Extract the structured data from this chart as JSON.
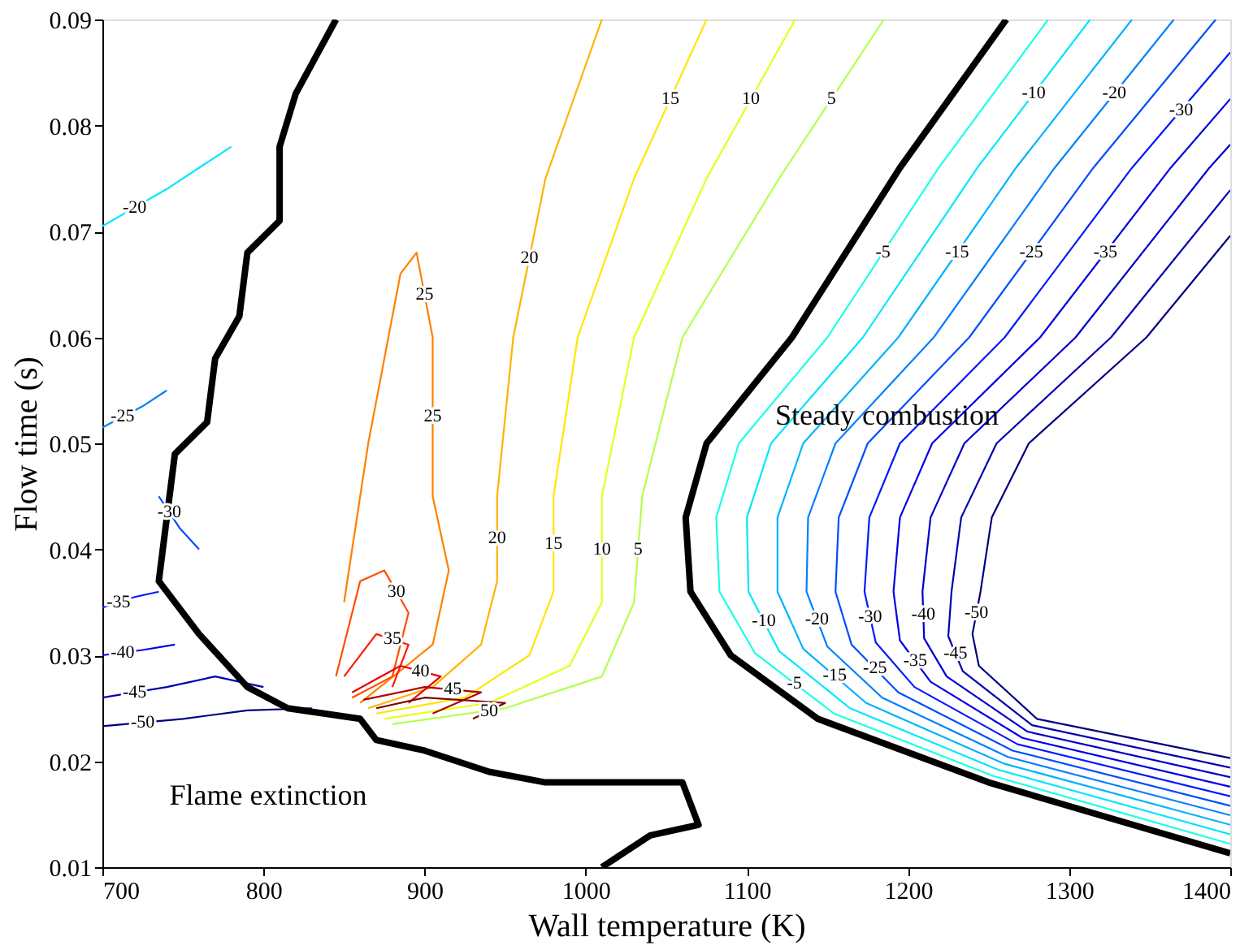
{
  "chart_data": {
    "type": "line",
    "xlabel": "Wall temperature (K)",
    "ylabel": "Flow time (s)",
    "xlim": [
      700,
      1400
    ],
    "ylim": [
      0.01,
      0.09
    ],
    "xticks": [
      700,
      800,
      900,
      {
        "value": 1000,
        "label": "1000"
      },
      {
        "value": 1100,
        "label": "1100"
      },
      {
        "value": 1200,
        "label": "1200"
      },
      {
        "value": 1300,
        "label": "1300"
      },
      {
        "value": 1400,
        "label": "1400"
      }
    ],
    "yticks": [
      0.01,
      0.02,
      0.03,
      0.04,
      0.05,
      0.06,
      0.07,
      0.08,
      0.09
    ],
    "grid": false,
    "series": [
      {
        "color": "#000000",
        "x": [
          1261,
          1195,
          1128,
          1075,
          1062,
          1065,
          1090,
          1144,
          1250,
          1400
        ],
        "values": [
          0.09,
          0.076,
          0.06,
          0.05,
          0.043,
          0.036,
          0.03,
          0.024,
          0.018,
          0.0113
        ]
      },
      {
        "color": "#1affe6",
        "x": [
          1287,
          1219,
          1150,
          1095,
          1081,
          1083,
          1105,
          1154,
          1253,
          1400
        ],
        "values": [
          0.09,
          0.076,
          0.06,
          0.05,
          0.043,
          0.036,
          0.0302,
          0.0245,
          0.0186,
          0.0122
        ]
      },
      {
        "color": "#00e6ff",
        "x": [
          1313,
          1243,
          1172,
          1115,
          1100,
          1101,
          1120,
          1164,
          1256,
          1400
        ],
        "values": [
          0.09,
          0.076,
          0.06,
          0.05,
          0.043,
          0.036,
          0.0304,
          0.025,
          0.0192,
          0.0131
        ]
      },
      {
        "color": "#00b3ff",
        "x": [
          1339,
          1267,
          1194,
          1135,
          1119,
          1119,
          1135,
          1174,
          1259,
          1400
        ],
        "values": [
          0.09,
          0.076,
          0.06,
          0.05,
          0.043,
          0.036,
          0.0306,
          0.0255,
          0.0198,
          0.014
        ]
      },
      {
        "color": "#0080ff",
        "x": [
          1365,
          1291,
          1216,
          1155,
          1138,
          1137,
          1150,
          1184,
          1262,
          1400
        ],
        "values": [
          0.09,
          0.076,
          0.06,
          0.05,
          0.043,
          0.036,
          0.0308,
          0.026,
          0.0204,
          0.0149
        ]
      },
      {
        "color": "#004dff",
        "x": [
          1391,
          1315,
          1238,
          1175,
          1157,
          1155,
          1165,
          1194,
          1265,
          1400
        ],
        "values": [
          0.09,
          0.076,
          0.06,
          0.05,
          0.043,
          0.036,
          0.031,
          0.0265,
          0.021,
          0.0158
        ]
      },
      {
        "color": "#001aff",
        "x": [
          1400,
          1339,
          1260,
          1195,
          1176,
          1173,
          1180,
          1204,
          1268,
          1400
        ],
        "values": [
          0.0869,
          0.076,
          0.06,
          0.05,
          0.043,
          0.036,
          0.0312,
          0.027,
          0.0216,
          0.0167
        ]
      },
      {
        "color": "#0000e6",
        "x": [
          1400,
          1363,
          1282,
          1215,
          1195,
          1191,
          1195,
          1214,
          1271,
          1400
        ],
        "values": [
          0.0825,
          0.076,
          0.06,
          0.05,
          0.043,
          0.036,
          0.0314,
          0.0275,
          0.0222,
          0.0176
        ]
      },
      {
        "color": "#0000cc",
        "x": [
          1400,
          1387,
          1304,
          1235,
          1214,
          1209,
          1210,
          1224,
          1274,
          1400
        ],
        "values": [
          0.0782,
          0.076,
          0.06,
          0.05,
          0.043,
          0.036,
          0.0316,
          0.028,
          0.0228,
          0.0185
        ]
      },
      {
        "color": "#0000b3",
        "x": [
          1400,
          1326,
          1255,
          1233,
          1227,
          1225,
          1234,
          1277,
          1400
        ],
        "values": [
          0.0739,
          0.06,
          0.05,
          0.043,
          0.036,
          0.0318,
          0.0285,
          0.0234,
          0.0194
        ]
      },
      {
        "color": "#000080",
        "x": [
          1400,
          1348,
          1275,
          1252,
          1245,
          1240,
          1244,
          1280,
          1400
        ],
        "values": [
          0.0696,
          0.06,
          0.05,
          0.043,
          0.036,
          0.032,
          0.029,
          0.024,
          0.0203
        ]
      },
      {
        "color": "#b3ff4d",
        "x": [
          1185,
          1120,
          1060,
          1035,
          1030,
          1010,
          950,
          880
        ],
        "values": [
          0.09,
          0.075,
          0.06,
          0.045,
          0.035,
          0.028,
          0.025,
          0.0235
        ]
      },
      {
        "color": "#e6ff1a",
        "x": [
          1130,
          1075,
          1030,
          1010,
          1010,
          990,
          940,
          875
        ],
        "values": [
          0.09,
          0.075,
          0.06,
          0.045,
          0.035,
          0.029,
          0.0255,
          0.024
        ]
      },
      {
        "color": "#ffe600",
        "x": [
          1075,
          1030,
          995,
          980,
          980,
          965,
          925,
          870
        ],
        "values": [
          0.09,
          0.075,
          0.06,
          0.045,
          0.036,
          0.03,
          0.026,
          0.0245
        ]
      },
      {
        "color": "#ffb300",
        "x": [
          1010,
          975,
          955,
          945,
          945,
          935,
          905,
          865
        ],
        "values": [
          0.09,
          0.075,
          0.06,
          0.045,
          0.037,
          0.031,
          0.027,
          0.025
        ]
      },
      {
        "color": "#ff8000",
        "x": [
          850,
          865,
          885,
          895,
          905,
          905,
          915,
          905,
          860
        ],
        "values": [
          0.035,
          0.05,
          0.066,
          0.068,
          0.06,
          0.045,
          0.038,
          0.031,
          0.0255
        ]
      },
      {
        "color": "#ff4d00",
        "x": [
          845,
          860,
          875,
          890,
          880,
          855
        ],
        "values": [
          0.028,
          0.037,
          0.038,
          0.034,
          0.028,
          0.026
        ]
      },
      {
        "color": "#ff1a00",
        "x": [
          850,
          870,
          890,
          880
        ],
        "values": [
          0.028,
          0.032,
          0.031,
          0.027
        ]
      },
      {
        "color": "#e60000",
        "x": [
          855,
          885,
          910,
          890
        ],
        "values": [
          0.0265,
          0.029,
          0.028,
          0.0255
        ]
      },
      {
        "color": "#b30000",
        "x": [
          862,
          900,
          935,
          905
        ],
        "values": [
          0.0258,
          0.027,
          0.0265,
          0.0245
        ]
      },
      {
        "color": "#800000",
        "x": [
          870,
          900,
          950,
          930
        ],
        "values": [
          0.025,
          0.026,
          0.0255,
          0.024
        ]
      },
      {
        "color": "#00e6ff",
        "x": [
          700,
          740,
          780
        ],
        "values": [
          0.0705,
          0.074,
          0.078
        ]
      },
      {
        "color": "#004dff",
        "x": [
          735,
          748,
          760
        ],
        "values": [
          0.045,
          0.042,
          0.04
        ]
      },
      {
        "color": "#0080ff",
        "x": [
          700,
          725,
          740
        ],
        "values": [
          0.0515,
          0.0535,
          0.055
        ]
      },
      {
        "color": "#001aff",
        "x": [
          700,
          720,
          735
        ],
        "values": [
          0.0345,
          0.0355,
          0.036
        ]
      },
      {
        "color": "#0000e6",
        "x": [
          700,
          725,
          745
        ],
        "values": [
          0.03,
          0.0305,
          0.031
        ]
      },
      {
        "color": "#0000b3",
        "x": [
          700,
          740,
          770,
          800
        ],
        "values": [
          0.026,
          0.027,
          0.028,
          0.027
        ]
      },
      {
        "color": "#000080",
        "x": [
          700,
          750,
          790,
          830
        ],
        "values": [
          0.0233,
          0.024,
          0.0248,
          0.025
        ]
      },
      {
        "color": "#000000",
        "x": [
          845,
          820,
          810,
          810,
          790,
          785,
          770,
          765,
          745,
          740,
          735,
          760,
          790,
          815,
          860,
          870,
          900,
          940,
          975,
          1060,
          1070,
          1040,
          1010
        ],
        "values": [
          0.09,
          0.083,
          0.078,
          0.071,
          0.068,
          0.062,
          0.058,
          0.052,
          0.049,
          0.043,
          0.037,
          0.032,
          0.027,
          0.025,
          0.024,
          0.022,
          0.021,
          0.019,
          0.018,
          0.018,
          0.014,
          0.013,
          0.01
        ]
      }
    ],
    "annotations": [
      {
        "text": "5",
        "x": 1152.5,
        "y": 0.0825
      },
      {
        "text": "10",
        "x": 1102.5,
        "y": 0.0825
      },
      {
        "text": "15",
        "x": 1052.5,
        "y": 0.0825
      },
      {
        "text": "20",
        "x": 965,
        "y": 0.0675
      },
      {
        "text": "25",
        "x": 900,
        "y": 0.064
      },
      {
        "text": "5",
        "x": 1032.5,
        "y": 0.04
      },
      {
        "text": "10",
        "x": 1010,
        "y": 0.04
      },
      {
        "text": "15",
        "x": 980,
        "y": 0.0405
      },
      {
        "text": "20",
        "x": 945,
        "y": 0.041
      },
      {
        "text": "25",
        "x": 905,
        "y": 0.0525
      },
      {
        "text": "30",
        "x": 882.5,
        "y": 0.036
      },
      {
        "text": "35",
        "x": 880,
        "y": 0.0315
      },
      {
        "text": "40",
        "x": 897.5,
        "y": 0.0285
      },
      {
        "text": "45",
        "x": 917.5,
        "y": 0.02675
      },
      {
        "text": "50",
        "x": 940,
        "y": 0.02475
      },
      {
        "text": "-5",
        "x": 1184.5,
        "y": 0.068
      },
      {
        "text": "-10",
        "x": 1278,
        "y": 0.083
      },
      {
        "text": "-15",
        "x": 1230.5,
        "y": 0.068
      },
      {
        "text": "-20",
        "x": 1328,
        "y": 0.083
      },
      {
        "text": "-25",
        "x": 1276.5,
        "y": 0.068
      },
      {
        "text": "-30",
        "x": 1369.5,
        "y": 0.08145
      },
      {
        "text": "-35",
        "x": 1322.5,
        "y": 0.068
      },
      {
        "text": "-5",
        "x": 1129.5,
        "y": 0.02735
      },
      {
        "text": "-10",
        "x": 1110.5,
        "y": 0.0332
      },
      {
        "text": "-15",
        "x": 1154.5,
        "y": 0.02805
      },
      {
        "text": "-20",
        "x": 1143.5,
        "y": 0.0334
      },
      {
        "text": "-25",
        "x": 1179.5,
        "y": 0.02875
      },
      {
        "text": "-30",
        "x": 1176.5,
        "y": 0.0336
      },
      {
        "text": "-35",
        "x": 1204.5,
        "y": 0.02945
      },
      {
        "text": "-40",
        "x": 1209.5,
        "y": 0.0338
      },
      {
        "text": "-45",
        "x": 1229.5,
        "y": 0.03015
      },
      {
        "text": "-50",
        "x": 1242.5,
        "y": 0.034
      },
      {
        "text": "-20",
        "x": 720,
        "y": 0.07225
      },
      {
        "text": "-25",
        "x": 712.5,
        "y": 0.0525
      },
      {
        "text": "-30",
        "x": 741.5,
        "y": 0.0435
      },
      {
        "text": "-35",
        "x": 710,
        "y": 0.035
      },
      {
        "text": "-40",
        "x": 712.5,
        "y": 0.03025
      },
      {
        "text": "-45",
        "x": 720,
        "y": 0.0265
      },
      {
        "text": "-50",
        "x": 725,
        "y": 0.02365
      },
      "Steady combustion",
      "Flame extinction"
    ]
  }
}
